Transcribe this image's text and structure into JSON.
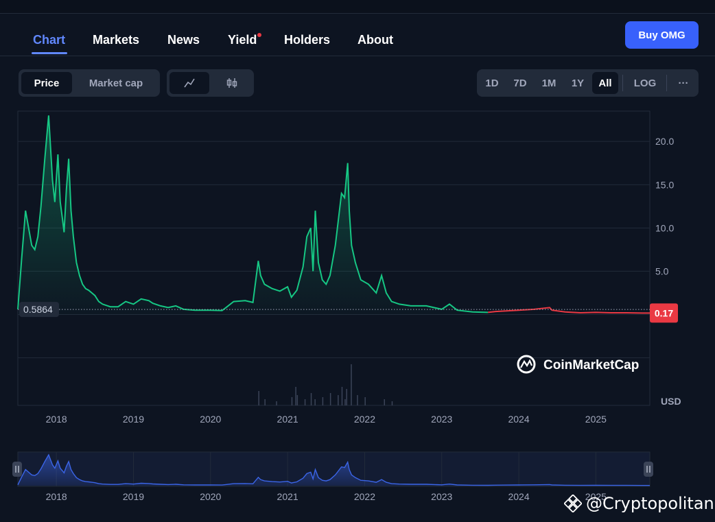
{
  "nav": {
    "tabs": [
      {
        "label": "Chart",
        "active": true
      },
      {
        "label": "Markets"
      },
      {
        "label": "News"
      },
      {
        "label": "Yield",
        "badge": true
      },
      {
        "label": "Holders"
      },
      {
        "label": "About"
      }
    ],
    "buy_label": "Buy OMG"
  },
  "toolbar": {
    "price_label": "Price",
    "marketcap_label": "Market cap",
    "line_icon": "line-chart-icon",
    "candle_icon": "candlestick-icon",
    "ranges": [
      "1D",
      "7D",
      "1M",
      "1Y",
      "All"
    ],
    "selected_range": "All",
    "log_label": "LOG",
    "more_label": "···"
  },
  "colors": {
    "up": "#16c784",
    "down": "#ea3943",
    "accent": "#3861fb",
    "nav_bar": "#3b65e8"
  },
  "chart_data": {
    "type": "line",
    "y_ticks": [
      "5.0",
      "10.0",
      "15.0",
      "20.0"
    ],
    "ylim": [
      -10.5,
      23.5
    ],
    "x_ticks": [
      "2018",
      "2019",
      "2020",
      "2021",
      "2022",
      "2023",
      "2024",
      "2025"
    ],
    "x": [
      2017.5,
      2017.55,
      2017.6,
      2017.64,
      2017.68,
      2017.72,
      2017.76,
      2017.8,
      2017.85,
      2017.9,
      2017.95,
      2017.98,
      2018.02,
      2018.05,
      2018.08,
      2018.1,
      2018.13,
      2018.16,
      2018.19,
      2018.22,
      2018.26,
      2018.3,
      2018.34,
      2018.38,
      2018.42,
      2018.46,
      2018.5,
      2018.55,
      2018.6,
      2018.7,
      2018.8,
      2018.9,
      2019.0,
      2019.1,
      2019.2,
      2019.25,
      2019.35,
      2019.45,
      2019.55,
      2019.65,
      2019.8,
      2020.0,
      2020.15,
      2020.2,
      2020.3,
      2020.45,
      2020.55,
      2020.62,
      2020.65,
      2020.7,
      2020.8,
      2020.9,
      2021.0,
      2021.05,
      2021.12,
      2021.2,
      2021.25,
      2021.3,
      2021.33,
      2021.36,
      2021.4,
      2021.45,
      2021.5,
      2021.55,
      2021.62,
      2021.7,
      2021.74,
      2021.78,
      2021.8,
      2021.83,
      2021.88,
      2021.95,
      2022.05,
      2022.15,
      2022.22,
      2022.28,
      2022.35,
      2022.45,
      2022.6,
      2022.8,
      2023.0,
      2023.1,
      2023.2,
      2023.4,
      2023.6,
      2023.7,
      2023.8,
      2024.0,
      2024.2,
      2024.4,
      2024.43,
      2024.6,
      2024.8,
      2025.0,
      2025.2,
      2025.4,
      2025.6,
      2025.7
    ],
    "y": [
      0.6,
      6.5,
      12.0,
      10.0,
      8.0,
      7.5,
      9.0,
      12.5,
      18.0,
      23.0,
      15.5,
      13.0,
      18.5,
      13.0,
      11.0,
      9.5,
      14.5,
      18.0,
      12.0,
      9.0,
      6.0,
      4.5,
      3.5,
      3.0,
      2.8,
      2.5,
      2.2,
      1.5,
      1.2,
      0.9,
      0.9,
      1.5,
      1.2,
      1.8,
      1.6,
      1.3,
      1.0,
      0.8,
      1.0,
      0.6,
      0.5,
      0.5,
      0.45,
      0.8,
      1.5,
      1.6,
      1.4,
      6.2,
      4.5,
      3.5,
      3.0,
      2.7,
      3.2,
      2.0,
      2.8,
      5.5,
      9.0,
      10.0,
      5.0,
      12.0,
      6.0,
      4.0,
      3.5,
      4.5,
      8.0,
      14.0,
      13.5,
      17.5,
      12.0,
      8.0,
      6.0,
      4.0,
      3.5,
      2.5,
      4.5,
      2.5,
      1.5,
      1.2,
      1.0,
      1.0,
      0.6,
      1.2,
      0.5,
      0.3,
      0.25,
      0.35,
      0.4,
      0.5,
      0.6,
      0.8,
      0.5,
      0.3,
      0.2,
      0.25,
      0.2,
      0.2,
      0.17,
      0.17
    ],
    "down_from_x": 2023.6,
    "reference_label": "0.5864",
    "reference_value": 0.5864,
    "current_label": "0.17",
    "current_value": 0.17,
    "currency_label": "USD",
    "brand_label": "CoinMarketCap",
    "volume_x": [
      2020.62,
      2020.7,
      2020.85,
      2021.05,
      2021.1,
      2021.12,
      2021.22,
      2021.3,
      2021.35,
      2021.45,
      2021.55,
      2021.65,
      2021.7,
      2021.74,
      2021.76,
      2021.82,
      2021.9,
      2022.0,
      2022.25,
      2022.35
    ],
    "volume_rel": [
      0.35,
      0.15,
      0.1,
      0.2,
      0.45,
      0.25,
      0.15,
      0.3,
      0.15,
      0.2,
      0.3,
      0.25,
      0.45,
      0.15,
      0.4,
      1.0,
      0.25,
      0.2,
      0.15,
      0.1
    ],
    "navigator_ticks": [
      "2018",
      "2019",
      "2020",
      "2021",
      "2022",
      "2023",
      "2024",
      "2025"
    ]
  },
  "watermark": {
    "text": "@Cryptopolitan"
  }
}
